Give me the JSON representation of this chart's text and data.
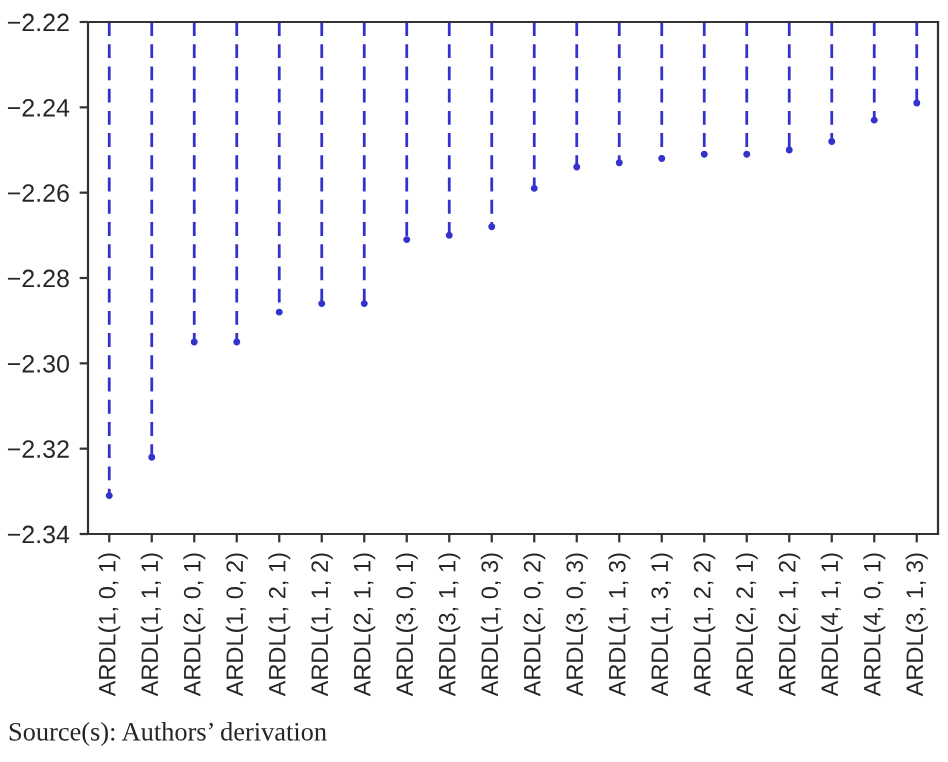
{
  "chart_data": {
    "type": "lollipop",
    "categories": [
      "ARDL(1, 0, 1)",
      "ARDL(1, 1, 1)",
      "ARDL(2, 0, 1)",
      "ARDL(1, 0, 2)",
      "ARDL(1, 2, 1)",
      "ARDL(1, 1, 2)",
      "ARDL(2, 1, 1)",
      "ARDL(3, 0, 1)",
      "ARDL(3, 1, 1)",
      "ARDL(1, 0, 3)",
      "ARDL(2, 0, 2)",
      "ARDL(3, 0, 3)",
      "ARDL(1, 1, 3)",
      "ARDL(1, 3, 1)",
      "ARDL(1, 2, 2)",
      "ARDL(2, 2, 1)",
      "ARDL(2, 1, 2)",
      "ARDL(4, 1, 1)",
      "ARDL(4, 0, 1)",
      "ARDL(3, 1, 3)"
    ],
    "values": [
      -2.331,
      -2.322,
      -2.295,
      -2.295,
      -2.288,
      -2.286,
      -2.286,
      -2.271,
      -2.27,
      -2.268,
      -2.259,
      -2.254,
      -2.253,
      -2.252,
      -2.251,
      -2.251,
      -2.25,
      -2.248,
      -2.243,
      -2.239
    ],
    "color": "#3333cc",
    "marker": "circle",
    "line_style": "dashed",
    "ylim": [
      -2.34,
      -2.22
    ],
    "yticks": [
      {
        "value": -2.34,
        "label": "−2.34"
      },
      {
        "value": -2.32,
        "label": "−2.32"
      },
      {
        "value": -2.3,
        "label": "−2.30"
      },
      {
        "value": -2.28,
        "label": "−2.28"
      },
      {
        "value": -2.26,
        "label": "−2.26"
      },
      {
        "value": -2.24,
        "label": "−2.24"
      },
      {
        "value": -2.22,
        "label": "−2.22"
      }
    ],
    "annotations": [
      "Source(s): Authors’ derivation"
    ]
  }
}
